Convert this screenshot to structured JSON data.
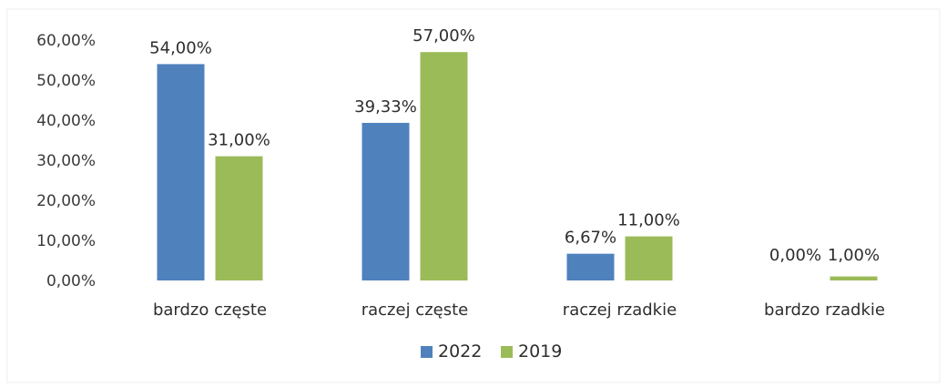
{
  "chart_data": {
    "type": "bar",
    "categories": [
      "bardzo częste",
      "raczej częste",
      "raczej rzadkie",
      "bardzo rzadkie"
    ],
    "series": [
      {
        "name": "2022",
        "values": [
          54.0,
          39.33,
          6.67,
          0.0
        ],
        "labels": [
          "54,00%",
          "39,33%",
          "6,67%",
          "0,00%"
        ],
        "color": "#4f81bd"
      },
      {
        "name": "2019",
        "values": [
          31.0,
          57.0,
          11.0,
          1.0
        ],
        "labels": [
          "31,00%",
          "57,00%",
          "11,00%",
          "1,00%"
        ],
        "color": "#9bbb59"
      }
    ],
    "ylim": [
      0,
      60
    ],
    "yticks": [
      0,
      10,
      20,
      30,
      40,
      50,
      60
    ],
    "ytick_labels": [
      "0,00%",
      "10,00%",
      "20,00%",
      "30,00%",
      "40,00%",
      "50,00%",
      "60,00%"
    ],
    "grid": false,
    "legend_position": "bottom"
  }
}
